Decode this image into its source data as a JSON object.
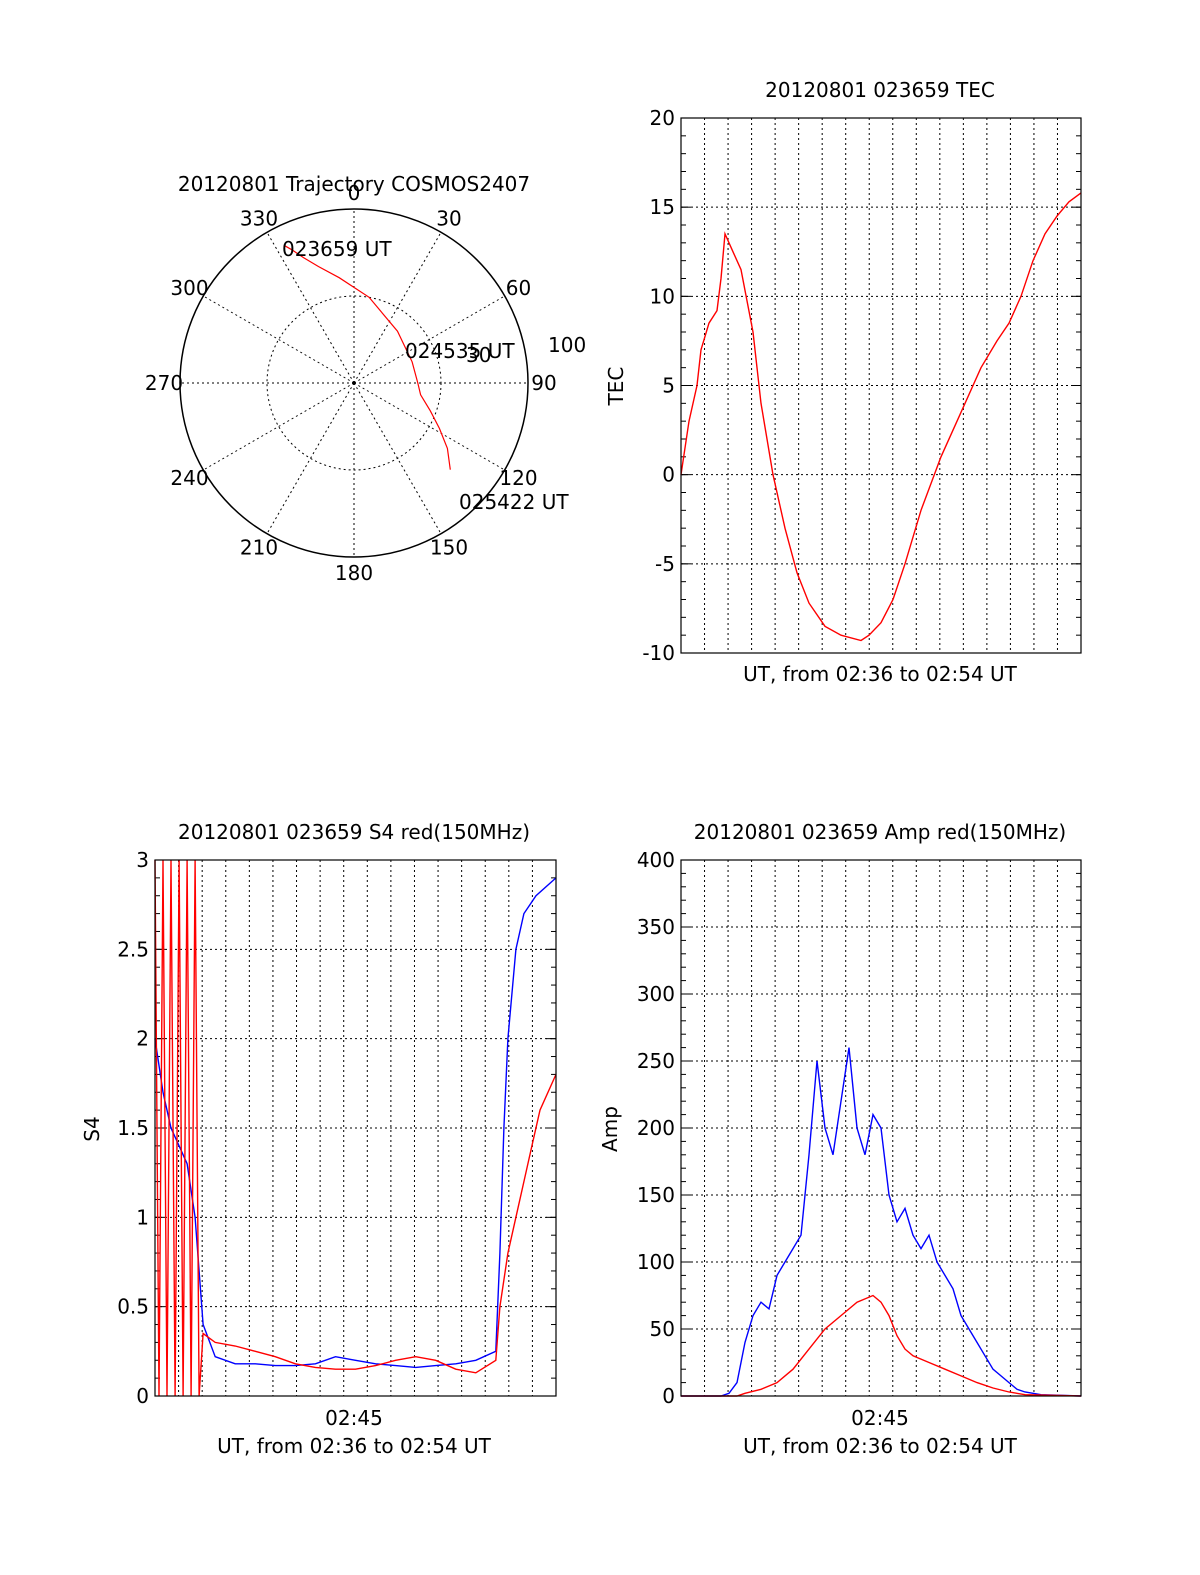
{
  "chart_data": [
    {
      "type": "polar",
      "title": "20120801 Trajectory COSMOS2407",
      "azimuth_labels": [
        "0",
        "30",
        "60",
        "90",
        "120",
        "150",
        "180",
        "210",
        "240",
        "270",
        "300",
        "330"
      ],
      "radial_labels": [
        "30",
        "100"
      ],
      "colors": {
        "trajectory": "#ff0000"
      },
      "annotations": [
        "023659 UT",
        "024535 UT",
        "025422 UT"
      ],
      "trajectory": [
        {
          "az": 333,
          "el": 10,
          "label": "023659 UT"
        },
        {
          "az": 335,
          "el": 14
        },
        {
          "az": 338,
          "el": 20
        },
        {
          "az": 343,
          "el": 27
        },
        {
          "az": 352,
          "el": 35
        },
        {
          "az": 10,
          "el": 45
        },
        {
          "az": 40,
          "el": 55
        },
        {
          "az": 70,
          "el": 58
        },
        {
          "az": 90,
          "el": 57
        },
        {
          "az": 100,
          "el": 55
        },
        {
          "az": 110,
          "el": 48
        },
        {
          "az": 118,
          "el": 40
        },
        {
          "az": 125,
          "el": 31
        },
        {
          "az": 132,
          "el": 23
        }
      ]
    },
    {
      "type": "line",
      "title": "20120801 023659 TEC",
      "xlabel": "UT, from 02:36 to 02:54 UT",
      "ylabel": "TEC",
      "ylim": [
        -10,
        20
      ],
      "yticks": [
        "-10",
        "-5",
        "0",
        "5",
        "10",
        "15",
        "20"
      ],
      "grid": true,
      "series": [
        {
          "color": "#ff0000",
          "points": [
            [
              0.0,
              0
            ],
            [
              0.02,
              3
            ],
            [
              0.04,
              5
            ],
            [
              0.05,
              7
            ],
            [
              0.07,
              8.5
            ],
            [
              0.09,
              9.2
            ],
            [
              0.1,
              11
            ],
            [
              0.11,
              13.5
            ],
            [
              0.13,
              12.5
            ],
            [
              0.15,
              11.5
            ],
            [
              0.18,
              8
            ],
            [
              0.2,
              4
            ],
            [
              0.23,
              0
            ],
            [
              0.26,
              -3
            ],
            [
              0.29,
              -5.5
            ],
            [
              0.32,
              -7.2
            ],
            [
              0.36,
              -8.5
            ],
            [
              0.4,
              -9
            ],
            [
              0.45,
              -9.3
            ],
            [
              0.47,
              -9
            ],
            [
              0.5,
              -8.3
            ],
            [
              0.53,
              -7
            ],
            [
              0.56,
              -5
            ],
            [
              0.6,
              -2
            ],
            [
              0.65,
              1
            ],
            [
              0.7,
              3.5
            ],
            [
              0.75,
              6
            ],
            [
              0.79,
              7.5
            ],
            [
              0.82,
              8.5
            ],
            [
              0.85,
              10
            ],
            [
              0.88,
              12
            ],
            [
              0.91,
              13.5
            ],
            [
              0.94,
              14.5
            ],
            [
              0.97,
              15.3
            ],
            [
              1.0,
              15.8
            ]
          ]
        }
      ]
    },
    {
      "type": "line",
      "title": "20120801 023659 S4 red(150MHz)",
      "xlabel": "UT, from 02:36 to 02:54 UT",
      "ylabel": "S4",
      "xtick_label": "02:45",
      "ylim": [
        0,
        3
      ],
      "yticks": [
        "0",
        "0.5",
        "1",
        "1.5",
        "2",
        "2.5",
        "3"
      ],
      "grid": true,
      "series": [
        {
          "color": "#0000ff",
          "points": [
            [
              0.0,
              2.0
            ],
            [
              0.02,
              1.7
            ],
            [
              0.04,
              1.5
            ],
            [
              0.06,
              1.4
            ],
            [
              0.08,
              1.3
            ],
            [
              0.1,
              1.0
            ],
            [
              0.12,
              0.4
            ],
            [
              0.15,
              0.22
            ],
            [
              0.2,
              0.18
            ],
            [
              0.25,
              0.18
            ],
            [
              0.3,
              0.17
            ],
            [
              0.35,
              0.17
            ],
            [
              0.4,
              0.18
            ],
            [
              0.45,
              0.22
            ],
            [
              0.5,
              0.2
            ],
            [
              0.55,
              0.18
            ],
            [
              0.6,
              0.17
            ],
            [
              0.65,
              0.16
            ],
            [
              0.7,
              0.17
            ],
            [
              0.75,
              0.18
            ],
            [
              0.8,
              0.2
            ],
            [
              0.85,
              0.25
            ],
            [
              0.86,
              0.8
            ],
            [
              0.87,
              1.5
            ],
            [
              0.88,
              2.0
            ],
            [
              0.9,
              2.5
            ],
            [
              0.92,
              2.7
            ],
            [
              0.95,
              2.8
            ],
            [
              1.0,
              2.9
            ]
          ]
        },
        {
          "color": "#ff0000",
          "points": [
            [
              0.0,
              3.0
            ],
            [
              0.01,
              0.0
            ],
            [
              0.02,
              3.0
            ],
            [
              0.03,
              0.0
            ],
            [
              0.04,
              3.0
            ],
            [
              0.05,
              0.0
            ],
            [
              0.06,
              3.0
            ],
            [
              0.07,
              0.0
            ],
            [
              0.08,
              3.0
            ],
            [
              0.09,
              0.0
            ],
            [
              0.1,
              3.0
            ],
            [
              0.11,
              0.0
            ],
            [
              0.12,
              0.35
            ],
            [
              0.15,
              0.3
            ],
            [
              0.2,
              0.28
            ],
            [
              0.25,
              0.25
            ],
            [
              0.3,
              0.22
            ],
            [
              0.35,
              0.18
            ],
            [
              0.4,
              0.16
            ],
            [
              0.45,
              0.15
            ],
            [
              0.5,
              0.15
            ],
            [
              0.55,
              0.17
            ],
            [
              0.6,
              0.2
            ],
            [
              0.65,
              0.22
            ],
            [
              0.7,
              0.2
            ],
            [
              0.75,
              0.15
            ],
            [
              0.8,
              0.13
            ],
            [
              0.85,
              0.2
            ],
            [
              0.86,
              0.5
            ],
            [
              0.88,
              0.8
            ],
            [
              0.9,
              1.0
            ],
            [
              0.92,
              1.2
            ],
            [
              0.94,
              1.4
            ],
            [
              0.96,
              1.6
            ],
            [
              1.0,
              1.8
            ]
          ]
        }
      ]
    },
    {
      "type": "line",
      "title": "20120801 023659 Amp red(150MHz)",
      "xlabel": "UT, from 02:36 to 02:54 UT",
      "ylabel": "Amp",
      "xtick_label": "02:45",
      "ylim": [
        0,
        400
      ],
      "yticks": [
        "0",
        "50",
        "100",
        "150",
        "200",
        "250",
        "300",
        "350",
        "400"
      ],
      "grid": true,
      "series": [
        {
          "color": "#0000ff",
          "points": [
            [
              0.0,
              0
            ],
            [
              0.1,
              0
            ],
            [
              0.12,
              2
            ],
            [
              0.14,
              10
            ],
            [
              0.16,
              40
            ],
            [
              0.18,
              60
            ],
            [
              0.2,
              70
            ],
            [
              0.22,
              65
            ],
            [
              0.24,
              90
            ],
            [
              0.26,
              100
            ],
            [
              0.28,
              110
            ],
            [
              0.3,
              120
            ],
            [
              0.32,
              180
            ],
            [
              0.34,
              250
            ],
            [
              0.36,
              200
            ],
            [
              0.38,
              180
            ],
            [
              0.4,
              220
            ],
            [
              0.42,
              260
            ],
            [
              0.44,
              200
            ],
            [
              0.46,
              180
            ],
            [
              0.48,
              210
            ],
            [
              0.5,
              200
            ],
            [
              0.52,
              150
            ],
            [
              0.54,
              130
            ],
            [
              0.56,
              140
            ],
            [
              0.58,
              120
            ],
            [
              0.6,
              110
            ],
            [
              0.62,
              120
            ],
            [
              0.64,
              100
            ],
            [
              0.66,
              90
            ],
            [
              0.68,
              80
            ],
            [
              0.7,
              60
            ],
            [
              0.72,
              50
            ],
            [
              0.74,
              40
            ],
            [
              0.76,
              30
            ],
            [
              0.78,
              20
            ],
            [
              0.8,
              15
            ],
            [
              0.82,
              10
            ],
            [
              0.84,
              5
            ],
            [
              0.86,
              3
            ],
            [
              0.88,
              2
            ],
            [
              0.9,
              1
            ],
            [
              1.0,
              0
            ]
          ]
        },
        {
          "color": "#ff0000",
          "points": [
            [
              0.0,
              0
            ],
            [
              0.14,
              0
            ],
            [
              0.16,
              2
            ],
            [
              0.2,
              5
            ],
            [
              0.24,
              10
            ],
            [
              0.28,
              20
            ],
            [
              0.32,
              35
            ],
            [
              0.36,
              50
            ],
            [
              0.4,
              60
            ],
            [
              0.44,
              70
            ],
            [
              0.48,
              75
            ],
            [
              0.5,
              70
            ],
            [
              0.52,
              60
            ],
            [
              0.54,
              45
            ],
            [
              0.56,
              35
            ],
            [
              0.58,
              30
            ],
            [
              0.62,
              25
            ],
            [
              0.66,
              20
            ],
            [
              0.7,
              15
            ],
            [
              0.74,
              10
            ],
            [
              0.78,
              6
            ],
            [
              0.82,
              3
            ],
            [
              0.86,
              1
            ],
            [
              1.0,
              0
            ]
          ]
        }
      ]
    }
  ]
}
